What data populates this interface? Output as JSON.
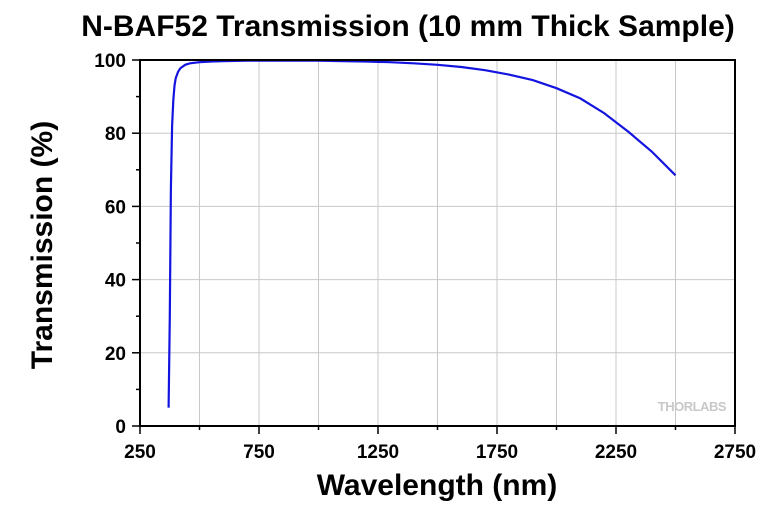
{
  "chart_data": {
    "type": "line",
    "title": "N-BAF52 Transmission (10 mm Thick Sample)",
    "xlabel": "Wavelength (nm)",
    "ylabel": "Transmission (%)",
    "xlim": [
      250,
      2750
    ],
    "ylim": [
      0,
      100
    ],
    "xticks": [
      250,
      750,
      1250,
      1750,
      2250,
      2750
    ],
    "yticks": [
      0,
      20,
      40,
      60,
      80,
      100
    ],
    "x_minor_step": 250,
    "y_minor_step": 10,
    "grid": true,
    "legend": "none",
    "series": [
      {
        "color": "#1414e0",
        "x": [
          370,
          375,
          380,
          385,
          390,
          395,
          400,
          410,
          420,
          440,
          460,
          500,
          550,
          600,
          700,
          800,
          900,
          1000,
          1100,
          1200,
          1300,
          1400,
          1500,
          1600,
          1700,
          1800,
          1900,
          2000,
          2100,
          2200,
          2300,
          2400,
          2500
        ],
        "y": [
          5,
          30,
          65,
          82,
          89,
          93,
          95,
          96.8,
          97.8,
          98.7,
          99.1,
          99.4,
          99.6,
          99.7,
          99.8,
          99.8,
          99.8,
          99.8,
          99.7,
          99.6,
          99.4,
          99.1,
          98.7,
          98.1,
          97.2,
          96.0,
          94.5,
          92.3,
          89.5,
          85.5,
          80.5,
          75.0,
          68.5
        ]
      }
    ]
  },
  "watermark": "THORLABS"
}
